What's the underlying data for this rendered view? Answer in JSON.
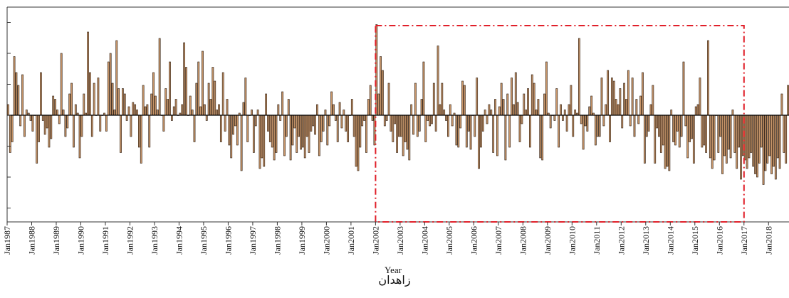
{
  "caption": "زاهدان",
  "chart_data": {
    "type": "bar",
    "xlabel": "Year",
    "ylabel": "",
    "title": "",
    "x_start": "1987-01",
    "x_end": "2018-08",
    "ylim": [
      -1.0,
      1.0
    ],
    "bar_color": "#c8966a",
    "bar_edge": "#2a1a0e",
    "highlight": {
      "start": "Jan2002",
      "end": "Jan2017",
      "color": "#e0202a"
    },
    "tick_labels": [
      "Jan1987",
      "Jan1988",
      "Jan1989",
      "Jan1990",
      "Jan1991",
      "Jan1992",
      "Jan1993",
      "Jan1994",
      "Jan1995",
      "Jan1996",
      "Jan1997",
      "Jan1998",
      "Jan1999",
      "Jan2000",
      "Jan2001",
      "Jan2002",
      "Jan2003",
      "Jan2004",
      "Jan2005",
      "Jan2006",
      "Jan2007",
      "Jan2008",
      "Jan2009",
      "Jan2010",
      "Jan2011",
      "Jan2012",
      "Jan2013",
      "Jan2014",
      "Jan2015",
      "Jan2016",
      "Jan2017",
      "Jan2018"
    ],
    "values": [
      0.1,
      -0.35,
      -0.25,
      0.55,
      0.4,
      0.28,
      -0.1,
      0.38,
      -0.2,
      0.05,
      0.02,
      -0.05,
      -0.15,
      0.0,
      -0.45,
      -0.25,
      0.4,
      -0.05,
      -0.18,
      -0.12,
      -0.3,
      -0.22,
      0.18,
      0.15,
      0.05,
      -0.08,
      0.58,
      0.05,
      -0.2,
      -0.12,
      0.2,
      0.3,
      -0.3,
      0.1,
      0.02,
      -0.4,
      -0.2,
      0.2,
      0.02,
      0.78,
      0.4,
      -0.2,
      0.3,
      0.0,
      0.35,
      -0.15,
      0.0,
      0.02,
      -0.15,
      0.5,
      0.58,
      0.3,
      0.05,
      0.7,
      0.25,
      -0.35,
      0.25,
      0.2,
      -0.05,
      0.08,
      -0.2,
      0.12,
      0.1,
      0.05,
      -0.3,
      -0.45,
      0.28,
      0.08,
      0.1,
      -0.3,
      0.2,
      0.4,
      0.18,
      0.05,
      0.72,
      0.0,
      -0.15,
      0.25,
      0.15,
      0.5,
      -0.05,
      0.08,
      0.15,
      0.0,
      0.02,
      0.1,
      0.68,
      0.45,
      0.0,
      0.18,
      0.05,
      -0.25,
      0.3,
      0.5,
      0.08,
      0.6,
      0.1,
      -0.05,
      0.3,
      0.15,
      0.45,
      0.32,
      0.05,
      0.1,
      -0.25,
      0.4,
      -0.15,
      0.15,
      -0.28,
      -0.4,
      -0.18,
      -0.1,
      -0.28,
      0.02,
      -0.52,
      0.12,
      0.35,
      -0.25,
      0.0,
      0.05,
      -0.35,
      -0.1,
      0.05,
      -0.5,
      -0.4,
      -0.48,
      0.2,
      -0.15,
      -0.25,
      -0.3,
      -0.42,
      -0.35,
      0.1,
      -0.05,
      0.22,
      -0.38,
      -0.2,
      0.15,
      -0.42,
      -0.28,
      -0.12,
      -0.35,
      -0.2,
      -0.32,
      -0.3,
      -0.4,
      -0.2,
      -0.35,
      -0.15,
      -0.1,
      -0.18,
      0.1,
      -0.38,
      -0.25,
      -0.15,
      0.05,
      -0.28,
      -0.1,
      0.22,
      0.1,
      -0.05,
      -0.25,
      0.12,
      -0.12,
      0.05,
      -0.15,
      -0.25,
      0.0,
      0.15,
      -0.2,
      -0.48,
      -0.52,
      -0.3,
      -0.1,
      -0.05,
      -0.35,
      0.15,
      0.28,
      -0.05,
      -0.28,
      0.85,
      0.2,
      0.55,
      0.42,
      -0.1,
      -0.05,
      0.3,
      -0.15,
      -0.25,
      -0.08,
      -0.35,
      -0.2,
      -0.2,
      -0.38,
      -0.25,
      -0.32,
      -0.42,
      0.1,
      -0.18,
      0.3,
      -0.2,
      -0.15,
      0.15,
      0.5,
      -0.25,
      -0.05,
      -0.1,
      -0.08,
      0.3,
      -0.15,
      0.65,
      0.1,
      0.3,
      0.05,
      -0.05,
      -0.2,
      0.1,
      -0.1,
      0.02,
      -0.28,
      -0.3,
      -0.12,
      0.32,
      0.28,
      -0.3,
      -0.15,
      -0.32,
      0.0,
      -0.2,
      0.35,
      -0.5,
      -0.3,
      -0.15,
      0.05,
      -0.08,
      0.1,
      0.05,
      -0.35,
      0.15,
      -0.38,
      0.08,
      0.3,
      0.15,
      -0.42,
      0.2,
      -0.3,
      0.35,
      0.1,
      0.4,
      0.12,
      -0.25,
      -0.08,
      0.2,
      0.05,
      0.25,
      -0.3,
      0.38,
      0.3,
      0.05,
      0.15,
      -0.4,
      -0.42,
      0.2,
      0.5,
      0.02,
      -0.12,
      0.0,
      -0.05,
      0.25,
      -0.3,
      0.1,
      -0.05,
      0.05,
      -0.15,
      0.1,
      0.28,
      -0.2,
      0.05,
      0.02,
      0.72,
      -0.08,
      -0.32,
      -0.1,
      -0.15,
      0.08,
      0.18,
      0.02,
      -0.28,
      -0.2,
      -0.2,
      0.35,
      -0.1,
      0.1,
      0.42,
      -0.25,
      0.35,
      0.32,
      0.15,
      0.1,
      0.25,
      -0.12,
      0.3,
      0.15,
      0.42,
      -0.1,
      0.35,
      -0.2,
      0.15,
      -0.08,
      0.18,
      0.4,
      -0.45,
      -0.2,
      -0.15,
      0.1,
      0.28,
      -0.45,
      -0.12,
      -0.2,
      -0.35,
      -0.28,
      -0.5,
      -0.48,
      -0.52,
      0.05,
      -0.25,
      -0.28,
      -0.15,
      -0.3,
      -0.2,
      0.5,
      -0.1,
      -0.4,
      -0.25,
      -0.22,
      -0.45,
      0.08,
      0.1,
      0.35,
      -0.3,
      -0.28,
      -0.35,
      0.7,
      -0.4,
      -0.5,
      -0.42,
      0.0,
      -0.35,
      -0.2,
      -0.55,
      -0.38,
      -0.45,
      -0.32,
      -0.4,
      0.05,
      -0.35,
      -0.5,
      -0.3,
      -0.6,
      -0.38,
      -0.42,
      -0.5,
      -0.4,
      -0.35,
      -0.48,
      -0.55,
      -0.58,
      -0.45,
      -0.3,
      -0.65,
      -0.52,
      -0.45,
      -0.38,
      -0.55,
      -0.48,
      -0.6,
      -0.4,
      -0.5,
      0.2,
      -0.35,
      -0.45,
      0.28
    ]
  }
}
